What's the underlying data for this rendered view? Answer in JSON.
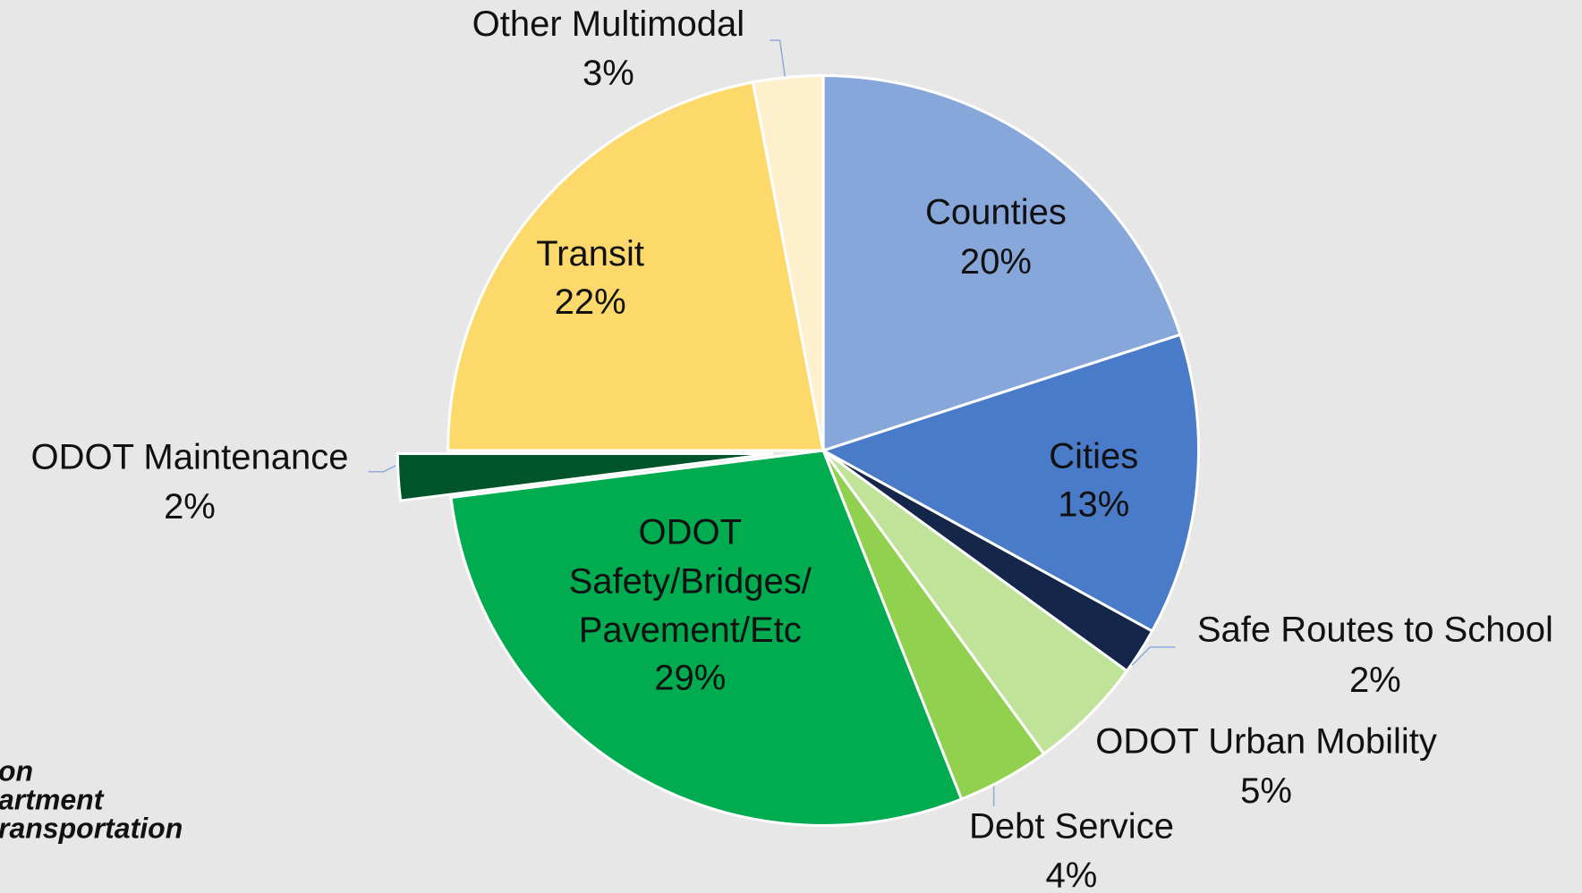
{
  "chart_data": {
    "type": "pie",
    "categories": [
      "Counties",
      "Cities",
      "Safe Routes to School",
      "ODOT Urban Mobility",
      "Debt Service",
      "ODOT\nSafety/Bridges/\nPavement/Etc",
      "ODOT Maintenance",
      "Transit",
      "Other Multimodal"
    ],
    "values": [
      20,
      13,
      2,
      5,
      4,
      29,
      2,
      22,
      3
    ],
    "value_labels": [
      "20%",
      "13%",
      "2%",
      "5%",
      "4%",
      "29%",
      "2%",
      "22%",
      "3%"
    ],
    "colors": [
      "#87a7db",
      "#4a7bc8",
      "#14274a",
      "#c0e39a",
      "#92d050",
      "#00ac4f",
      "#00542a",
      "#fdd96b",
      "#fef0cd"
    ],
    "explode": [
      "ODOT Maintenance"
    ]
  },
  "logo": [
    "on",
    "artment",
    "ransportation"
  ]
}
